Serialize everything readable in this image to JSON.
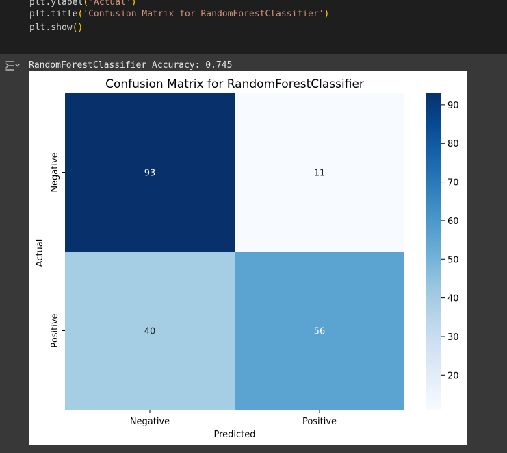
{
  "code": {
    "lines": [
      [
        {
          "t": "plt.ylabel",
          "c": "plain"
        },
        {
          "t": "(",
          "c": "paren"
        },
        {
          "t": "'Actual'",
          "c": "str"
        },
        {
          "t": ")",
          "c": "paren"
        }
      ],
      [
        {
          "t": "plt.title",
          "c": "plain"
        },
        {
          "t": "(",
          "c": "paren"
        },
        {
          "t": "'Confusion Matrix for RandomForestClassifier'",
          "c": "str"
        },
        {
          "t": ")",
          "c": "paren"
        }
      ],
      [
        {
          "t": "plt.show",
          "c": "plain"
        },
        {
          "t": "()",
          "c": "paren"
        }
      ]
    ]
  },
  "output": {
    "toggle_icon": "output-toggle-icon",
    "stdout": "RandomForestClassifier Accuracy: 0.745"
  },
  "chart_data": {
    "type": "heatmap",
    "title": "Confusion Matrix for RandomForestClassifier",
    "xlabel": "Predicted",
    "ylabel": "Actual",
    "x_categories": [
      "Negative",
      "Positive"
    ],
    "y_categories": [
      "Negative",
      "Positive"
    ],
    "values": [
      [
        93,
        11
      ],
      [
        40,
        56
      ]
    ],
    "colormap": "Blues",
    "colorbar": {
      "min": 11,
      "max": 93,
      "ticks": [
        20,
        30,
        40,
        50,
        60,
        70,
        80,
        90
      ]
    },
    "annotations": true
  }
}
